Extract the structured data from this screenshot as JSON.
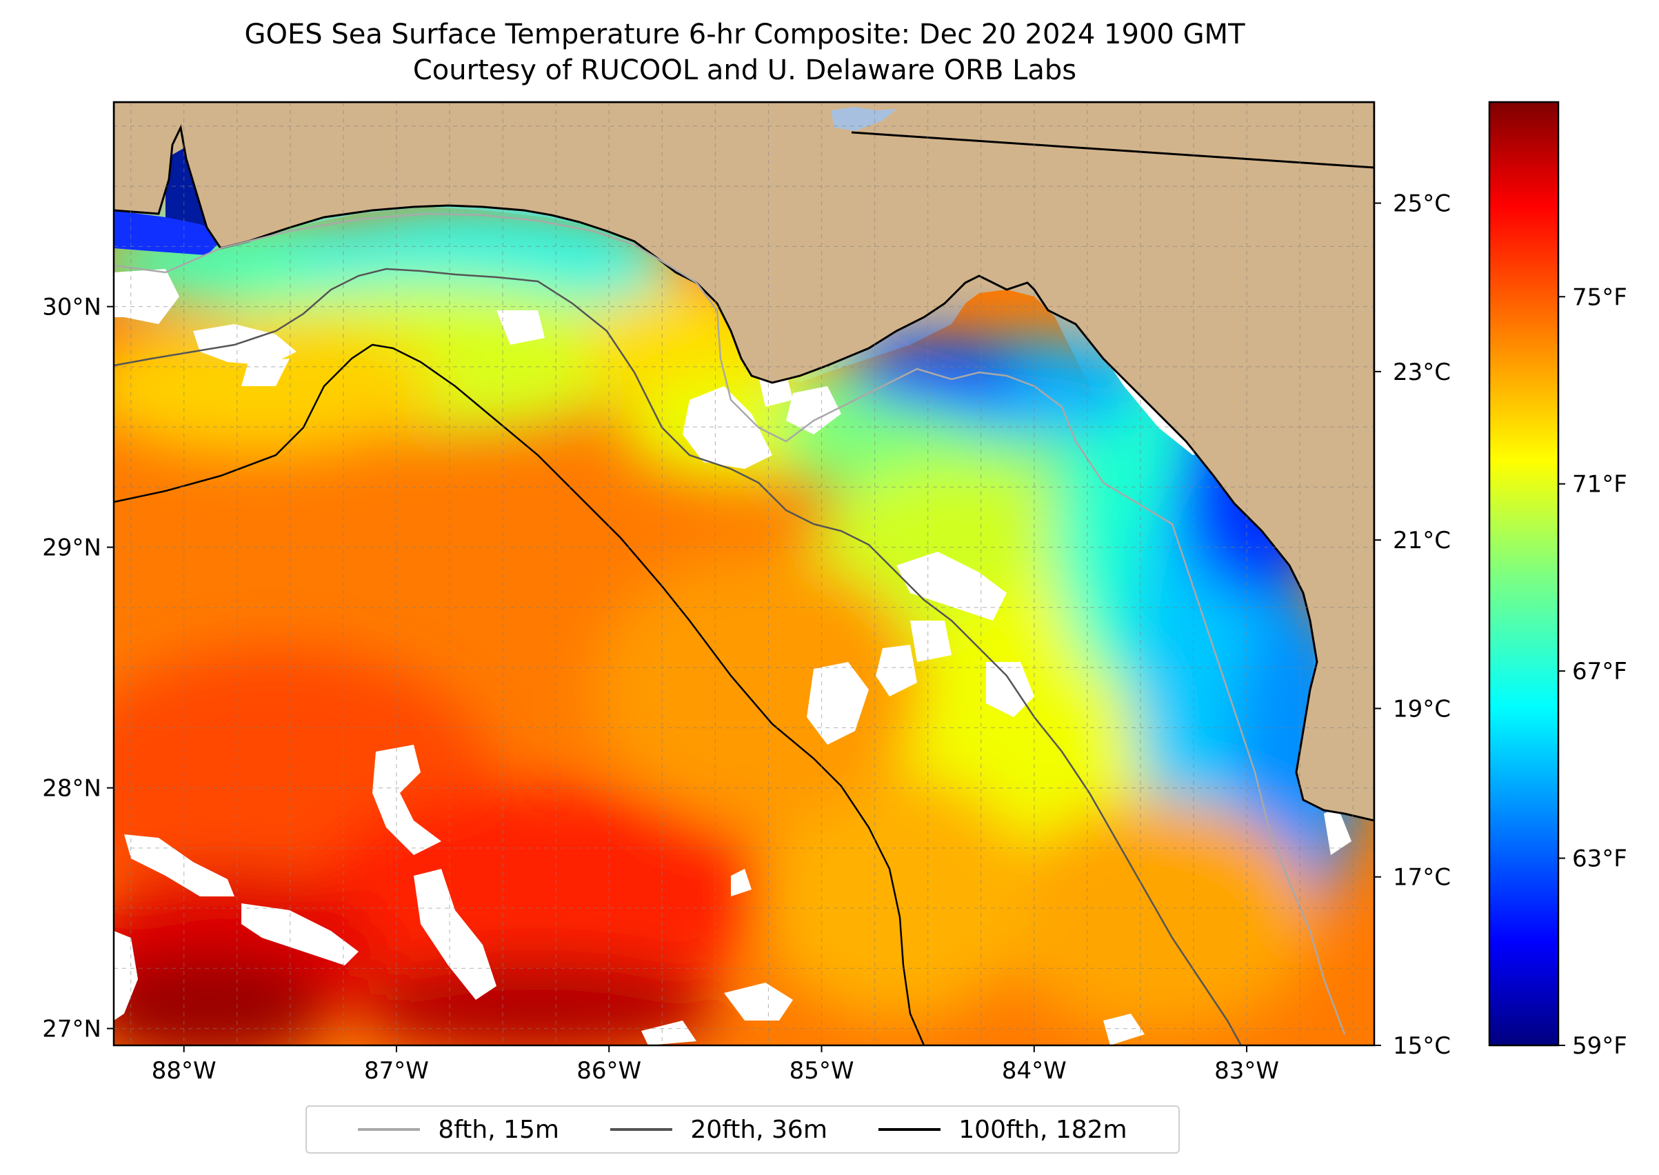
{
  "title": {
    "line1": "GOES Sea Surface Temperature 6-hr Composite: Dec 20 2024 1900 GMT",
    "line2": "Courtesy of RUCOOL and U. Delaware ORB Labs"
  },
  "map": {
    "lon_ticks": [
      "88°W",
      "87°W",
      "86°W",
      "85°W",
      "84°W",
      "83°W"
    ],
    "lat_ticks": [
      "30°N",
      "29°N",
      "28°N",
      "27°N"
    ],
    "lon_range": [
      -88.33,
      -82.4
    ],
    "lat_range": [
      26.93,
      30.85
    ],
    "land_color": "#d2b48c",
    "gridlines": true
  },
  "colorbar": {
    "celsius_ticks": [
      "25°C",
      "23°C",
      "21°C",
      "19°C",
      "17°C",
      "15°C"
    ],
    "fahrenheit_ticks": [
      "75°F",
      "71°F",
      "67°F",
      "63°F",
      "59°F"
    ],
    "colormap": "jet"
  },
  "legend": {
    "items": [
      {
        "label": "8fth, 15m",
        "color": "#a9a9a9"
      },
      {
        "label": "20fth, 36m",
        "color": "#555555"
      },
      {
        "label": "100fth, 182m",
        "color": "#000000"
      }
    ]
  }
}
